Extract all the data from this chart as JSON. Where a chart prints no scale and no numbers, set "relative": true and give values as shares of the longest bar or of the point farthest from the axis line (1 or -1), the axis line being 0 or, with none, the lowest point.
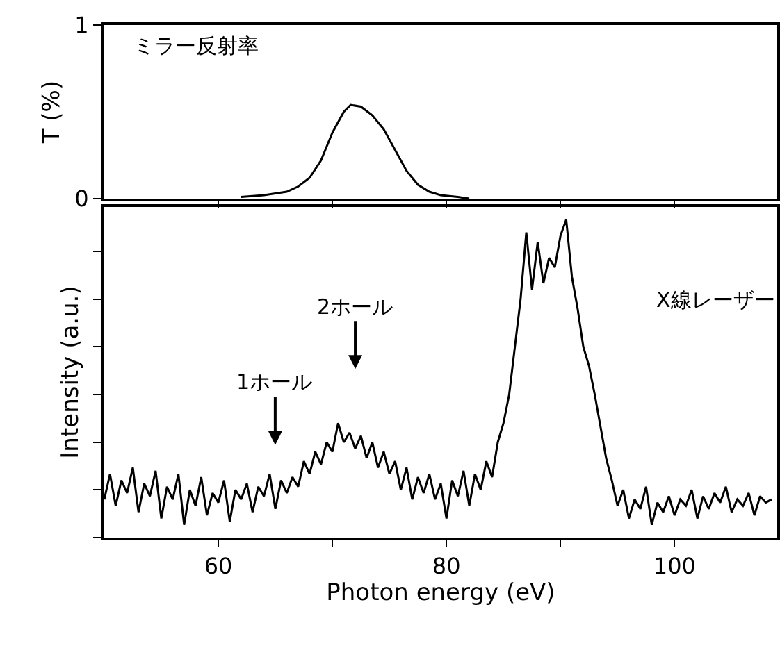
{
  "chart_data": [
    {
      "type": "line",
      "ylabel": "T (%)",
      "annotations": [
        "ミラー反射率"
      ],
      "xlim": [
        50,
        109
      ],
      "xticks": [
        {
          "value": 60,
          "label": null
        },
        {
          "value": 70,
          "label": null
        },
        {
          "value": 80,
          "label": null
        },
        {
          "value": 90,
          "label": null
        },
        {
          "value": 100,
          "label": null
        }
      ],
      "ylim": [
        0,
        1
      ],
      "yticks": [
        0,
        1
      ],
      "tick_labels": "y",
      "grid": false,
      "series": [
        {
          "color": "#000000",
          "x": [
            62,
            64,
            66,
            67,
            68,
            69,
            70,
            71,
            71.6,
            72.5,
            73.5,
            74.5,
            75.5,
            76.5,
            77.5,
            78.5,
            79.5,
            81,
            82
          ],
          "values": [
            0.01,
            0.02,
            0.04,
            0.07,
            0.12,
            0.22,
            0.38,
            0.5,
            0.54,
            0.53,
            0.48,
            0.4,
            0.28,
            0.16,
            0.08,
            0.04,
            0.02,
            0.01,
            0
          ]
        }
      ]
    },
    {
      "type": "line",
      "relative": true,
      "xlabel": "Photon energy (eV)",
      "ylabel": "Intensity (a.u.)",
      "xlim": [
        50,
        109
      ],
      "xticks": [
        60,
        {
          "value": 70,
          "label": null
        },
        80,
        {
          "value": 90,
          "label": null
        },
        100
      ],
      "tick_labels": "x",
      "grid": false,
      "annotations": [
        "1ホール",
        "2ホール",
        "X線レーザー"
      ],
      "series": [
        {
          "color": "#000000",
          "x": [
            50,
            50.5,
            51,
            51.5,
            52,
            52.5,
            53,
            53.5,
            54,
            54.5,
            55,
            55.5,
            56,
            56.5,
            57,
            57.5,
            58,
            58.5,
            59,
            59.5,
            60,
            60.5,
            61,
            61.5,
            62,
            62.5,
            63,
            63.5,
            64,
            64.5,
            65,
            65.5,
            66,
            66.5,
            67,
            67.5,
            68,
            68.5,
            69,
            69.5,
            70,
            70.5,
            71,
            71.5,
            72,
            72.5,
            73,
            73.5,
            74,
            74.5,
            75,
            75.5,
            76,
            76.5,
            77,
            77.5,
            78,
            78.5,
            79,
            79.5,
            80,
            80.5,
            81,
            81.5,
            82,
            82.5,
            83,
            83.5,
            84,
            84.5,
            85,
            85.5,
            86,
            86.5,
            87,
            87.5,
            88,
            88.5,
            89,
            89.5,
            90,
            90.5,
            91,
            91.5,
            92,
            92.5,
            93,
            93.5,
            94,
            94.5,
            95,
            95.5,
            96,
            96.5,
            97,
            97.5,
            98,
            98.5,
            99,
            99.5,
            100,
            100.5,
            101,
            101.5,
            102,
            102.5,
            103,
            103.5,
            104,
            104.5,
            105,
            105.5,
            106,
            106.5,
            107,
            107.5,
            108,
            108.5
          ],
          "values": [
            0.12,
            0.2,
            0.1,
            0.18,
            0.14,
            0.22,
            0.08,
            0.17,
            0.13,
            0.21,
            0.06,
            0.16,
            0.12,
            0.2,
            0.04,
            0.15,
            0.1,
            0.19,
            0.07,
            0.14,
            0.11,
            0.18,
            0.05,
            0.15,
            0.12,
            0.17,
            0.08,
            0.16,
            0.13,
            0.2,
            0.09,
            0.18,
            0.14,
            0.19,
            0.16,
            0.24,
            0.2,
            0.27,
            0.23,
            0.3,
            0.27,
            0.36,
            0.3,
            0.33,
            0.28,
            0.32,
            0.25,
            0.3,
            0.22,
            0.27,
            0.2,
            0.24,
            0.15,
            0.22,
            0.12,
            0.19,
            0.14,
            0.2,
            0.12,
            0.17,
            0.06,
            0.18,
            0.13,
            0.21,
            0.1,
            0.2,
            0.15,
            0.24,
            0.19,
            0.3,
            0.36,
            0.45,
            0.6,
            0.75,
            0.96,
            0.78,
            0.93,
            0.8,
            0.88,
            0.85,
            0.95,
            1,
            0.82,
            0.72,
            0.6,
            0.54,
            0.45,
            0.35,
            0.25,
            0.18,
            0.1,
            0.15,
            0.06,
            0.12,
            0.09,
            0.16,
            0.04,
            0.11,
            0.08,
            0.13,
            0.07,
            0.12,
            0.1,
            0.15,
            0.06,
            0.13,
            0.09,
            0.14,
            0.11,
            0.16,
            0.08,
            0.12,
            0.1,
            0.14,
            0.07,
            0.13,
            0.11,
            0.12
          ]
        }
      ]
    }
  ]
}
